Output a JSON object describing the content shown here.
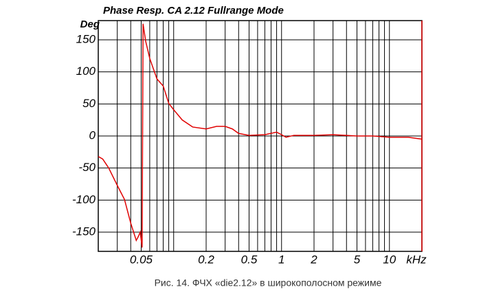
{
  "chart_data": {
    "type": "line",
    "title": "Phase Resp.  CA  2.12 Fullrange Mode",
    "y_label": "Deg",
    "x_label": "kHz",
    "caption": "Рис. 14. ФЧХ «die2.12» в широкополосном режиме",
    "log_x": true,
    "grid": true,
    "xlim": [
      0.02,
      20
    ],
    "ylim": [
      -180,
      180
    ],
    "xticks": [
      0.05,
      0.2,
      0.5,
      1,
      2,
      5,
      10
    ],
    "xgrid": [
      0.03,
      0.04,
      0.05,
      0.06,
      0.07,
      0.08,
      0.09,
      0.1,
      0.2,
      0.3,
      0.4,
      0.5,
      0.6,
      0.7,
      0.8,
      0.9,
      1,
      2,
      3,
      4,
      5,
      6,
      7,
      8,
      9,
      10
    ],
    "yticks": [
      -150,
      -100,
      -50,
      0,
      50,
      100,
      150
    ],
    "series": [
      {
        "color": "#e00000",
        "x": [
          0.02,
          0.022,
          0.025,
          0.03,
          0.035,
          0.04,
          0.045,
          0.047,
          0.049,
          0.051,
          0.052,
          0.055,
          0.06,
          0.07,
          0.08,
          0.09,
          0.1,
          0.12,
          0.15,
          0.2,
          0.25,
          0.3,
          0.35,
          0.4,
          0.5,
          0.7,
          0.9,
          1.0,
          1.1,
          1.3,
          2,
          3,
          5,
          7,
          10,
          15,
          20
        ],
        "values": [
          -32,
          -36,
          -50,
          -77,
          -99,
          -136,
          -163,
          -157,
          -150,
          -174,
          175,
          148,
          121,
          89,
          78,
          51,
          41,
          25,
          14,
          11,
          15,
          15,
          11,
          4,
          1,
          2,
          6,
          2,
          -2,
          1,
          1,
          2,
          0,
          0,
          -2,
          -2,
          -5
        ]
      }
    ]
  }
}
